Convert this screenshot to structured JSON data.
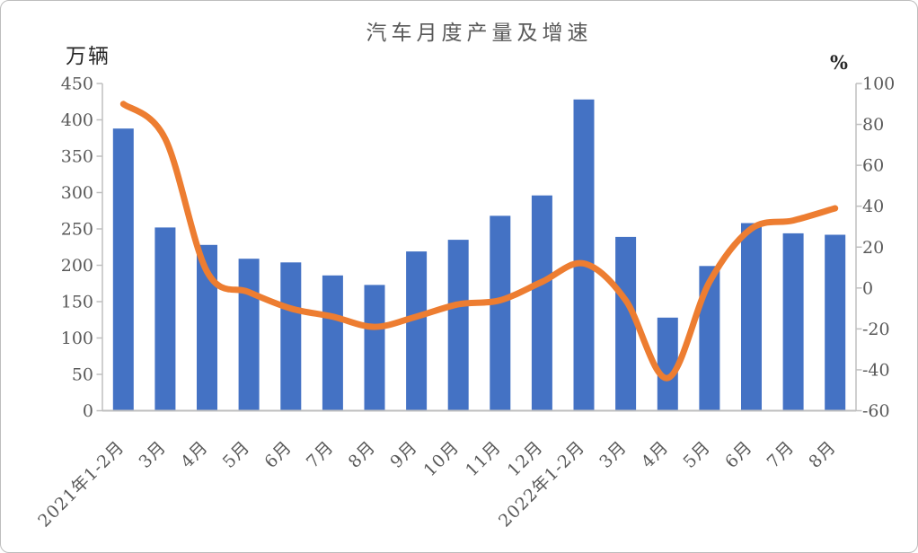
{
  "chart_data": {
    "type": "bar+line combo",
    "title": "汽车月度产量及增速",
    "categories": [
      "2021年1-2月",
      "3月",
      "4月",
      "5月",
      "6月",
      "7月",
      "8月",
      "9月",
      "10月",
      "11月",
      "12月",
      "2022年1-2月",
      "3月",
      "4月",
      "5月",
      "6月",
      "7月",
      "8月"
    ],
    "series": [
      {
        "name": "汽车月度产量",
        "type": "bar",
        "axis": "left",
        "unit": "万辆",
        "color": "#4472C4",
        "values": [
          388,
          252,
          228,
          209,
          204,
          186,
          173,
          219,
          235,
          268,
          296,
          428,
          239,
          128,
          199,
          258,
          244,
          242
        ]
      },
      {
        "name": "增速",
        "type": "line",
        "axis": "right",
        "unit": "%",
        "color": "#ED7D31",
        "smooth": true,
        "values": [
          90,
          73,
          8,
          -2,
          -10,
          -14,
          -19,
          -14,
          -8,
          -6,
          3,
          12,
          -6,
          -44,
          3,
          29,
          33,
          39
        ]
      }
    ],
    "left_axis": {
      "label": "万辆",
      "min": 0,
      "max": 450,
      "ticks": [
        450,
        400,
        350,
        300,
        250,
        200,
        150,
        100,
        50,
        0
      ]
    },
    "right_axis": {
      "label": "%",
      "min": -60,
      "max": 100,
      "ticks": [
        100,
        80,
        60,
        40,
        20,
        0,
        -20,
        -40,
        -60
      ]
    },
    "grid": false,
    "legend": "none",
    "x_labels_rotated_45": true
  },
  "styles": {
    "bar_color": "#4472C4",
    "line_color": "#ED7D31",
    "axis_line_color": "#bfbfbf",
    "tick_label_color": "#595959",
    "title_color": "#595959",
    "unit_label_color": "#262626",
    "background": "#ffffff",
    "frame_border_color": "#bdbdbd"
  }
}
